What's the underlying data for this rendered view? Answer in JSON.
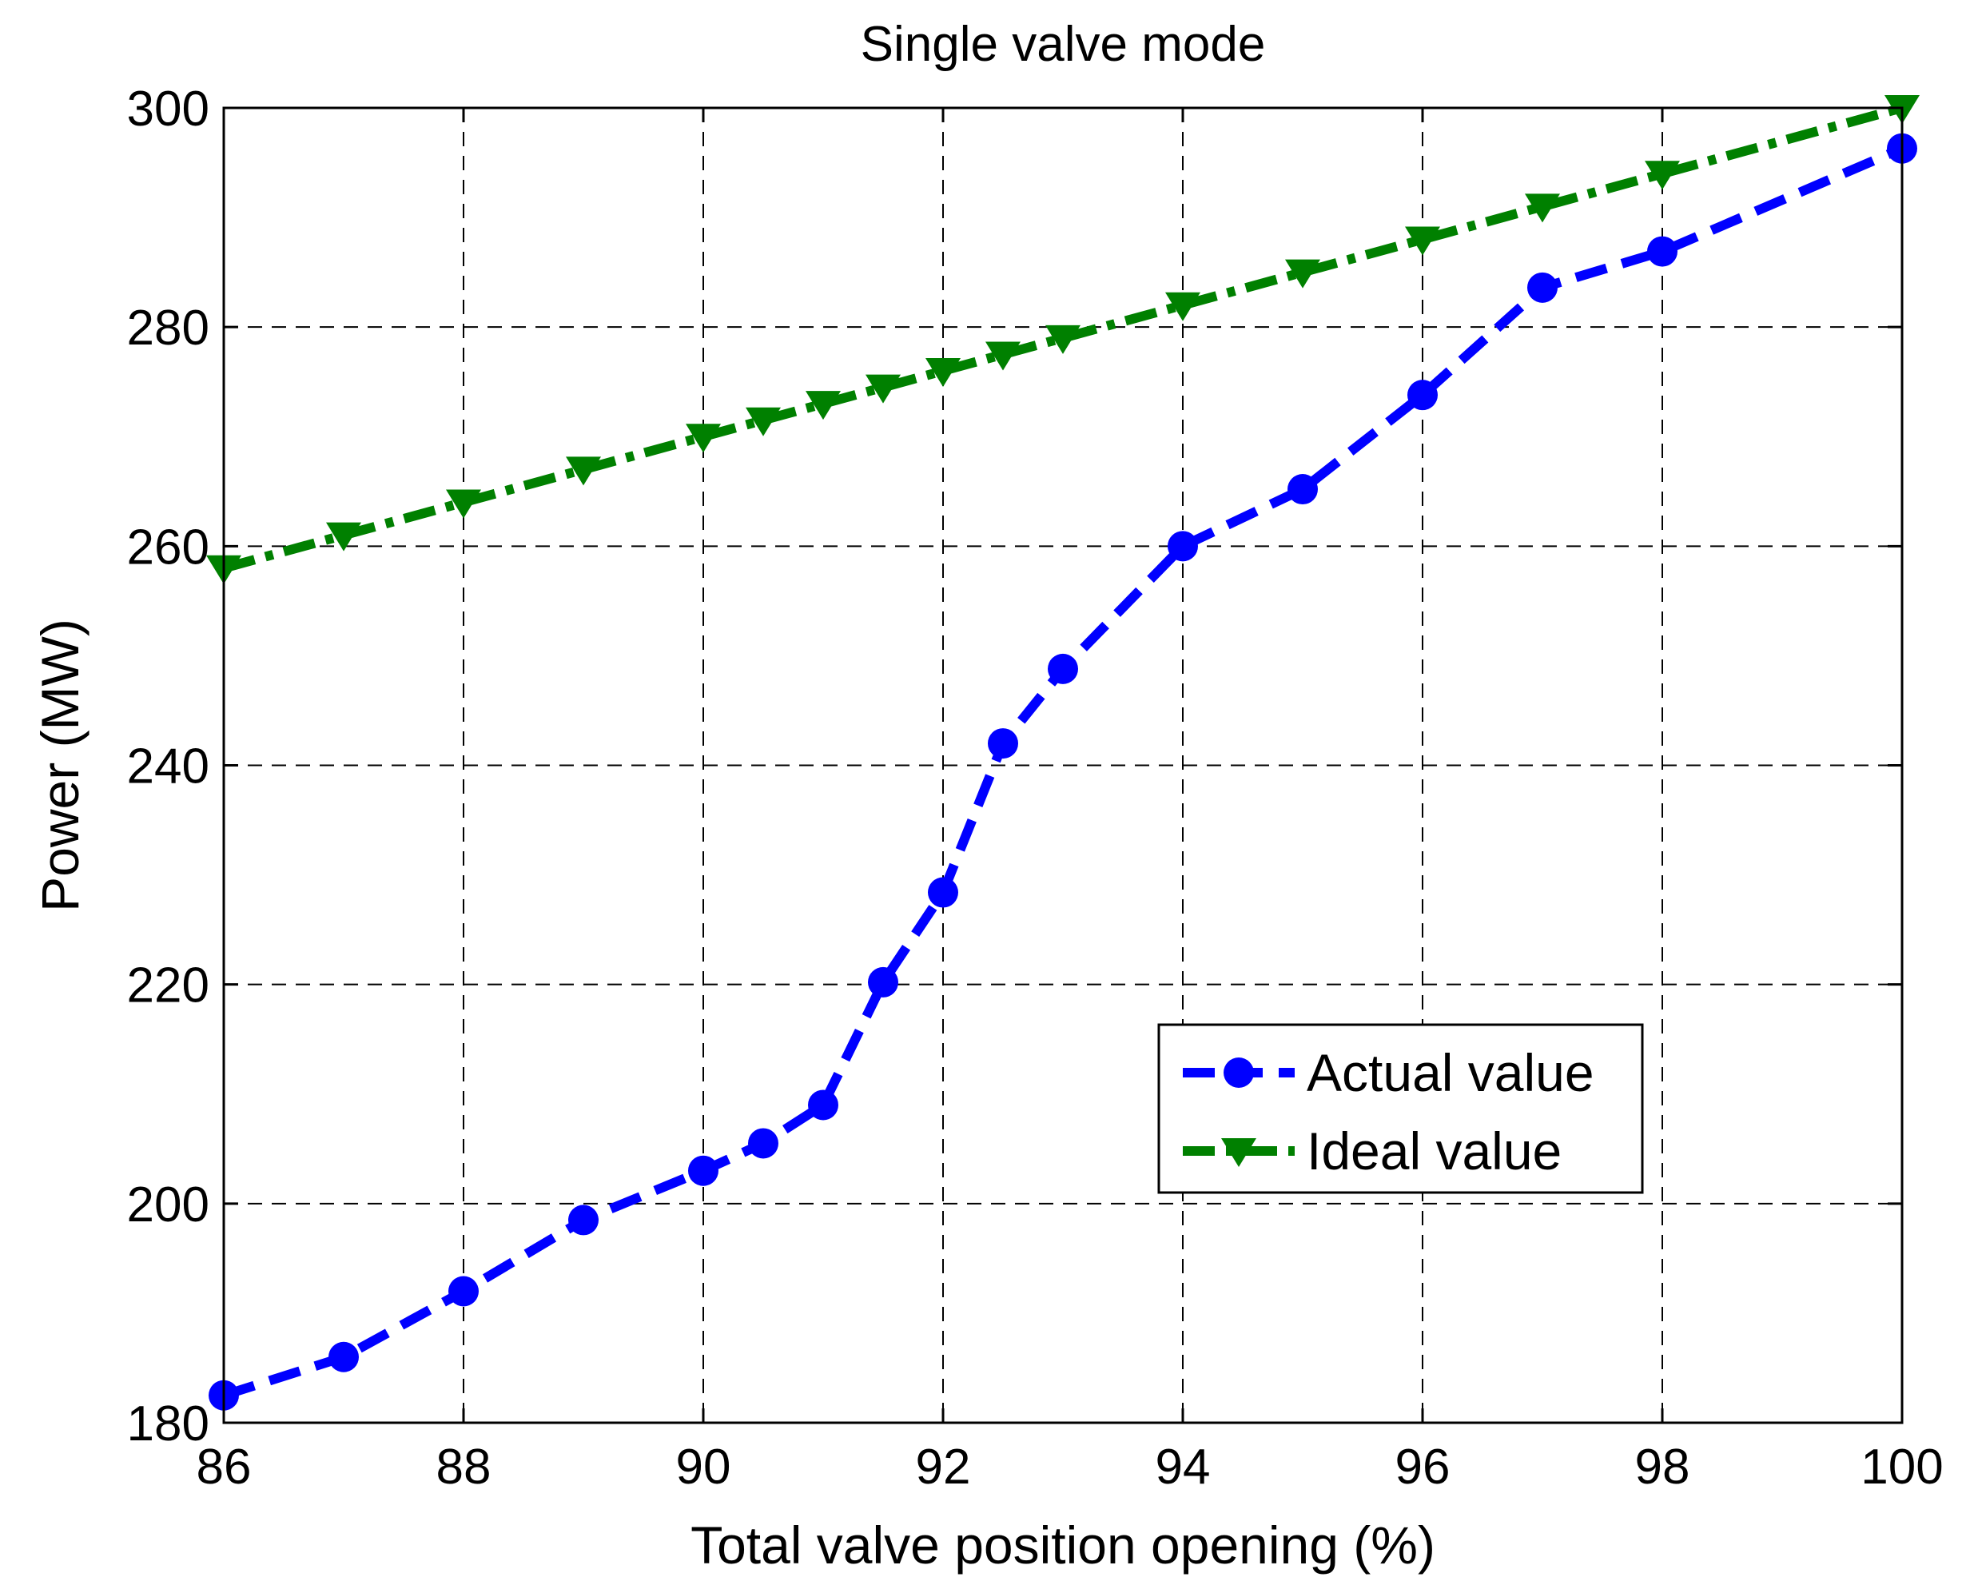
{
  "chart_data": {
    "type": "line",
    "title": "Single valve mode",
    "xlabel": "Total valve position opening (%)",
    "ylabel": "Power (MW)",
    "xlim": [
      86,
      100
    ],
    "ylim": [
      180,
      300
    ],
    "xticks": [
      86,
      88,
      90,
      92,
      94,
      96,
      98,
      100
    ],
    "yticks": [
      180,
      200,
      220,
      240,
      260,
      280,
      300
    ],
    "grid": true,
    "legend_position": "lower-right",
    "series": [
      {
        "name": "Actual value",
        "color": "#0000ff",
        "line_style": "dashed",
        "marker": "circle",
        "x": [
          86,
          87,
          88,
          89,
          90,
          90.5,
          91,
          91.5,
          92,
          92.5,
          93,
          94,
          95,
          96,
          97,
          98,
          100
        ],
        "values": [
          182.5,
          186,
          192,
          198.5,
          203,
          205.5,
          209,
          220.2,
          228.4,
          242,
          248.8,
          260,
          265.2,
          273.8,
          283.6,
          286.9,
          296.3
        ]
      },
      {
        "name": "Ideal value",
        "color": "#008000",
        "line_style": "dashdot",
        "marker": "triangle-down",
        "x": [
          86,
          87,
          88,
          89,
          90,
          90.5,
          91,
          91.5,
          92,
          92.5,
          93,
          94,
          95,
          96,
          97,
          98,
          100
        ],
        "values": [
          258,
          261,
          264,
          267,
          270,
          271.5,
          273,
          274.5,
          276,
          277.5,
          279,
          282,
          285,
          288,
          291,
          294,
          300
        ]
      }
    ]
  }
}
